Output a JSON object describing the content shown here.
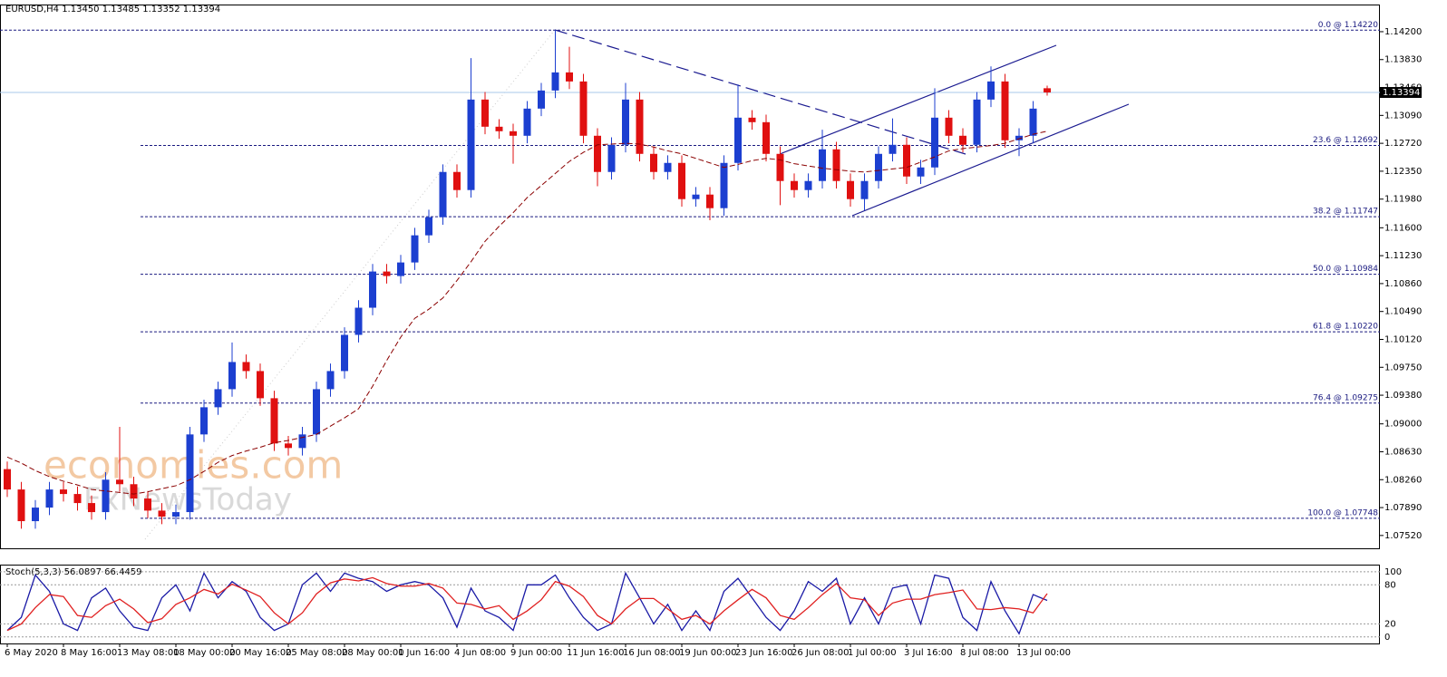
{
  "chart_data": [
    {
      "type": "candlestick",
      "header": "EURUSD,H4  1.13450 1.13485 1.13352 1.13394",
      "watermark": [
        "economies.com",
        "FxNewsToday"
      ],
      "categories": [
        "6 May 2020",
        null,
        null,
        null,
        "8 May 16:00",
        null,
        null,
        null,
        "13 May 08:00",
        null,
        null,
        null,
        "18 May 00:00",
        null,
        null,
        null,
        "20 May 16:00",
        null,
        null,
        null,
        "25 May 08:00",
        null,
        null,
        null,
        "28 May 00:00",
        null,
        null,
        null,
        "1 Jun 16:00",
        null,
        null,
        null,
        "4 Jun 08:00",
        null,
        null,
        null,
        "9 Jun 00:00",
        null,
        null,
        null,
        "11 Jun 16:00",
        null,
        null,
        null,
        "16 Jun 08:00",
        null,
        null,
        null,
        "19 Jun 00:00",
        null,
        null,
        null,
        "23 Jun 16:00",
        null,
        null,
        null,
        "26 Jun 08:00",
        null,
        null,
        null,
        "1 Jul 00:00",
        null,
        null,
        null,
        "3 Jul 16:00",
        null,
        null,
        null,
        "8 Jul 08:00",
        null,
        null,
        null,
        "13 Jul 00:00",
        null,
        null
      ],
      "open": [
        1.084,
        1.0813,
        1.0771,
        1.0789,
        1.0813,
        1.0807,
        1.0795,
        1.0783,
        1.0826,
        1.082,
        1.0801,
        1.0785,
        1.0777,
        1.0783,
        1.0886,
        1.0922,
        1.0946,
        1.0982,
        1.097,
        1.0934,
        1.0874,
        1.0868,
        1.0886,
        1.0946,
        1.097,
        1.1018,
        1.1054,
        1.1102,
        1.1096,
        1.1114,
        1.115,
        1.1174,
        1.1234,
        1.121,
        1.133,
        1.1294,
        1.1288,
        1.1282,
        1.1318,
        1.1342,
        1.1366,
        1.1354,
        1.1282,
        1.1234,
        1.127,
        1.133,
        1.1258,
        1.1234,
        1.1246,
        1.1198,
        1.1204,
        1.1186,
        1.1246,
        1.1306,
        1.13,
        1.1258,
        1.1222,
        1.121,
        1.1222,
        1.1264,
        1.1222,
        1.1198,
        1.1222,
        1.1258,
        1.127,
        1.1228,
        1.124,
        1.1306,
        1.1282,
        1.127,
        1.133,
        1.1354,
        1.1276,
        1.1282,
        1.1345
      ],
      "high": [
        1.085,
        1.0823,
        1.0799,
        1.0823,
        1.0823,
        1.0817,
        1.0805,
        1.0836,
        1.0896,
        1.083,
        1.0811,
        1.0795,
        1.0793,
        1.0896,
        1.0932,
        1.0956,
        1.1008,
        1.0992,
        1.098,
        1.0944,
        1.0884,
        1.0896,
        1.0956,
        1.098,
        1.1028,
        1.1064,
        1.1112,
        1.1112,
        1.1124,
        1.116,
        1.1184,
        1.1244,
        1.1244,
        1.1385,
        1.134,
        1.1304,
        1.1298,
        1.1328,
        1.1352,
        1.1422,
        1.14,
        1.1364,
        1.1292,
        1.128,
        1.1352,
        1.134,
        1.1268,
        1.1256,
        1.1256,
        1.1214,
        1.1214,
        1.1256,
        1.135,
        1.1316,
        1.131,
        1.1268,
        1.1232,
        1.1232,
        1.129,
        1.1274,
        1.1232,
        1.1232,
        1.1268,
        1.1305,
        1.128,
        1.125,
        1.1345,
        1.1316,
        1.1292,
        1.134,
        1.1374,
        1.1364,
        1.1292,
        1.1328,
        1.13485
      ],
      "low": [
        1.0803,
        1.0761,
        1.0761,
        1.0779,
        1.0797,
        1.0785,
        1.0773,
        1.0773,
        1.081,
        1.0791,
        1.0775,
        1.0767,
        1.0767,
        1.0773,
        1.0876,
        1.0912,
        1.0936,
        1.096,
        1.0924,
        1.0864,
        1.0858,
        1.0858,
        1.0876,
        1.0936,
        1.096,
        1.1008,
        1.1044,
        1.1086,
        1.1086,
        1.1104,
        1.114,
        1.1164,
        1.12,
        1.12,
        1.1284,
        1.1278,
        1.1245,
        1.1272,
        1.1308,
        1.1332,
        1.1344,
        1.1272,
        1.1215,
        1.1224,
        1.126,
        1.1248,
        1.1224,
        1.1224,
        1.1188,
        1.1188,
        1.117,
        1.1176,
        1.1236,
        1.129,
        1.1248,
        1.119,
        1.12,
        1.12,
        1.1212,
        1.1212,
        1.1188,
        1.1183,
        1.1212,
        1.1248,
        1.1218,
        1.1218,
        1.123,
        1.1272,
        1.126,
        1.126,
        1.132,
        1.1266,
        1.1255,
        1.1272,
        1.13352
      ],
      "close": [
        1.0813,
        1.0771,
        1.0789,
        1.0813,
        1.0807,
        1.0795,
        1.0783,
        1.0826,
        1.082,
        1.0801,
        1.0785,
        1.0777,
        1.0783,
        1.0886,
        1.0922,
        1.0946,
        1.0982,
        1.097,
        1.0934,
        1.0874,
        1.0868,
        1.0886,
        1.0946,
        1.097,
        1.1018,
        1.1054,
        1.1102,
        1.1096,
        1.1114,
        1.115,
        1.1174,
        1.1234,
        1.121,
        1.133,
        1.1294,
        1.1288,
        1.1282,
        1.1318,
        1.1342,
        1.1366,
        1.1354,
        1.1282,
        1.1234,
        1.127,
        1.133,
        1.1258,
        1.1234,
        1.1246,
        1.1198,
        1.1204,
        1.1186,
        1.1246,
        1.1306,
        1.13,
        1.1258,
        1.1222,
        1.121,
        1.1222,
        1.1264,
        1.1222,
        1.1198,
        1.1222,
        1.1258,
        1.127,
        1.1228,
        1.124,
        1.1306,
        1.1282,
        1.127,
        1.133,
        1.1354,
        1.1276,
        1.1282,
        1.1318,
        1.13394
      ],
      "up_color": "#1c3fd0",
      "down_color": "#e01010",
      "ma": {
        "color": "#8b0000",
        "values": [
          1.0856,
          1.0848,
          1.0838,
          1.083,
          1.0824,
          1.0819,
          1.0813,
          1.0811,
          1.0809,
          1.0807,
          1.081,
          1.0814,
          1.0818,
          1.0826,
          1.0837,
          1.0849,
          1.0858,
          1.0864,
          1.0869,
          1.0875,
          1.0878,
          1.0882,
          1.0886,
          1.0897,
          1.0908,
          1.092,
          1.095,
          1.0984,
          1.1015,
          1.104,
          1.1052,
          1.1067,
          1.109,
          1.1115,
          1.1142,
          1.1162,
          1.118,
          1.12,
          1.1216,
          1.1232,
          1.1248,
          1.126,
          1.127,
          1.1271,
          1.1272,
          1.1271,
          1.1267,
          1.1262,
          1.1258,
          1.1252,
          1.1246,
          1.124,
          1.1244,
          1.1249,
          1.1252,
          1.125,
          1.1245,
          1.1242,
          1.1239,
          1.1237,
          1.1235,
          1.1234,
          1.1236,
          1.1238,
          1.124,
          1.1247,
          1.1254,
          1.1262,
          1.1265,
          1.1267,
          1.1269,
          1.1272,
          1.1278,
          1.1284,
          1.1288
        ]
      },
      "last_price": {
        "value": 1.13394,
        "label": "1.13394"
      },
      "fib_levels": [
        {
          "value": 1.1422,
          "label": "0.0 @ 1.14220"
        },
        {
          "value": 1.12692,
          "label": "23.6 @ 1.12692"
        },
        {
          "value": 1.11747,
          "label": "38.2 @ 1.11747"
        },
        {
          "value": 1.10984,
          "label": "50.0 @ 1.10984"
        },
        {
          "value": 1.1022,
          "label": "61.8 @ 1.10220"
        },
        {
          "value": 1.09275,
          "label": "76.4 @ 1.09275"
        },
        {
          "value": 1.07748,
          "label": "100.0 @ 1.07748"
        }
      ],
      "ylim": [
        1.0735,
        1.1456
      ],
      "yticks": [
        {
          "value": 1.142,
          "label": "1.14200"
        },
        {
          "value": 1.1383,
          "label": "1.13830"
        },
        {
          "value": 1.1346,
          "label": "1.13460"
        },
        {
          "value": 1.1309,
          "label": "1.13090"
        },
        {
          "value": 1.1272,
          "label": "1.12720"
        },
        {
          "value": 1.1235,
          "label": "1.12350"
        },
        {
          "value": 1.1198,
          "label": "1.11980"
        },
        {
          "value": 1.116,
          "label": "1.11600"
        },
        {
          "value": 1.1123,
          "label": "1.11230"
        },
        {
          "value": 1.1086,
          "label": "1.10860"
        },
        {
          "value": 1.1049,
          "label": "1.10490"
        },
        {
          "value": 1.1012,
          "label": "1.10120"
        },
        {
          "value": 1.0975,
          "label": "1.09750"
        },
        {
          "value": 1.0938,
          "label": "1.09380"
        },
        {
          "value": 1.09,
          "label": "1.09000"
        },
        {
          "value": 1.0863,
          "label": "1.08630"
        },
        {
          "value": 1.0826,
          "label": "1.08260"
        },
        {
          "value": 1.0789,
          "label": "1.07890"
        },
        {
          "value": 1.0752,
          "label": "1.07520"
        }
      ]
    },
    {
      "type": "line",
      "title": "Stoch(5,3,3) 56.0897 66.4459",
      "series": [
        {
          "color": "#1a1aa6",
          "values": [
            10,
            30,
            95,
            70,
            20,
            10,
            60,
            75,
            40,
            15,
            10,
            60,
            80,
            40,
            98,
            60,
            85,
            70,
            30,
            10,
            20,
            80,
            98,
            70,
            98,
            90,
            85,
            70,
            80,
            85,
            80,
            60,
            15,
            75,
            40,
            30,
            10,
            80,
            80,
            95,
            60,
            30,
            10,
            20,
            98,
            60,
            20,
            50,
            10,
            40,
            10,
            70,
            90,
            60,
            30,
            10,
            40,
            85,
            70,
            90,
            20,
            60,
            20,
            75,
            80,
            20,
            95,
            90,
            30,
            10,
            85,
            40,
            5,
            65,
            56.0897
          ]
        },
        {
          "color": "#e02020",
          "values": [
            10,
            20,
            45,
            65,
            62,
            33,
            30,
            48,
            58,
            43,
            22,
            28,
            50,
            60,
            73,
            66,
            81,
            72,
            62,
            37,
            20,
            37,
            66,
            83,
            89,
            86,
            91,
            82,
            78,
            78,
            82,
            75,
            52,
            50,
            43,
            48,
            27,
            40,
            57,
            85,
            78,
            62,
            33,
            20,
            43,
            59,
            59,
            43,
            27,
            33,
            20,
            40,
            57,
            73,
            60,
            33,
            27,
            45,
            65,
            82,
            60,
            57,
            33,
            52,
            58,
            58,
            65,
            68,
            72,
            43,
            42,
            45,
            43,
            37,
            66.4459
          ]
        }
      ],
      "ylim": [
        -10,
        111
      ],
      "yticks": [
        0,
        20,
        80,
        100
      ]
    }
  ]
}
